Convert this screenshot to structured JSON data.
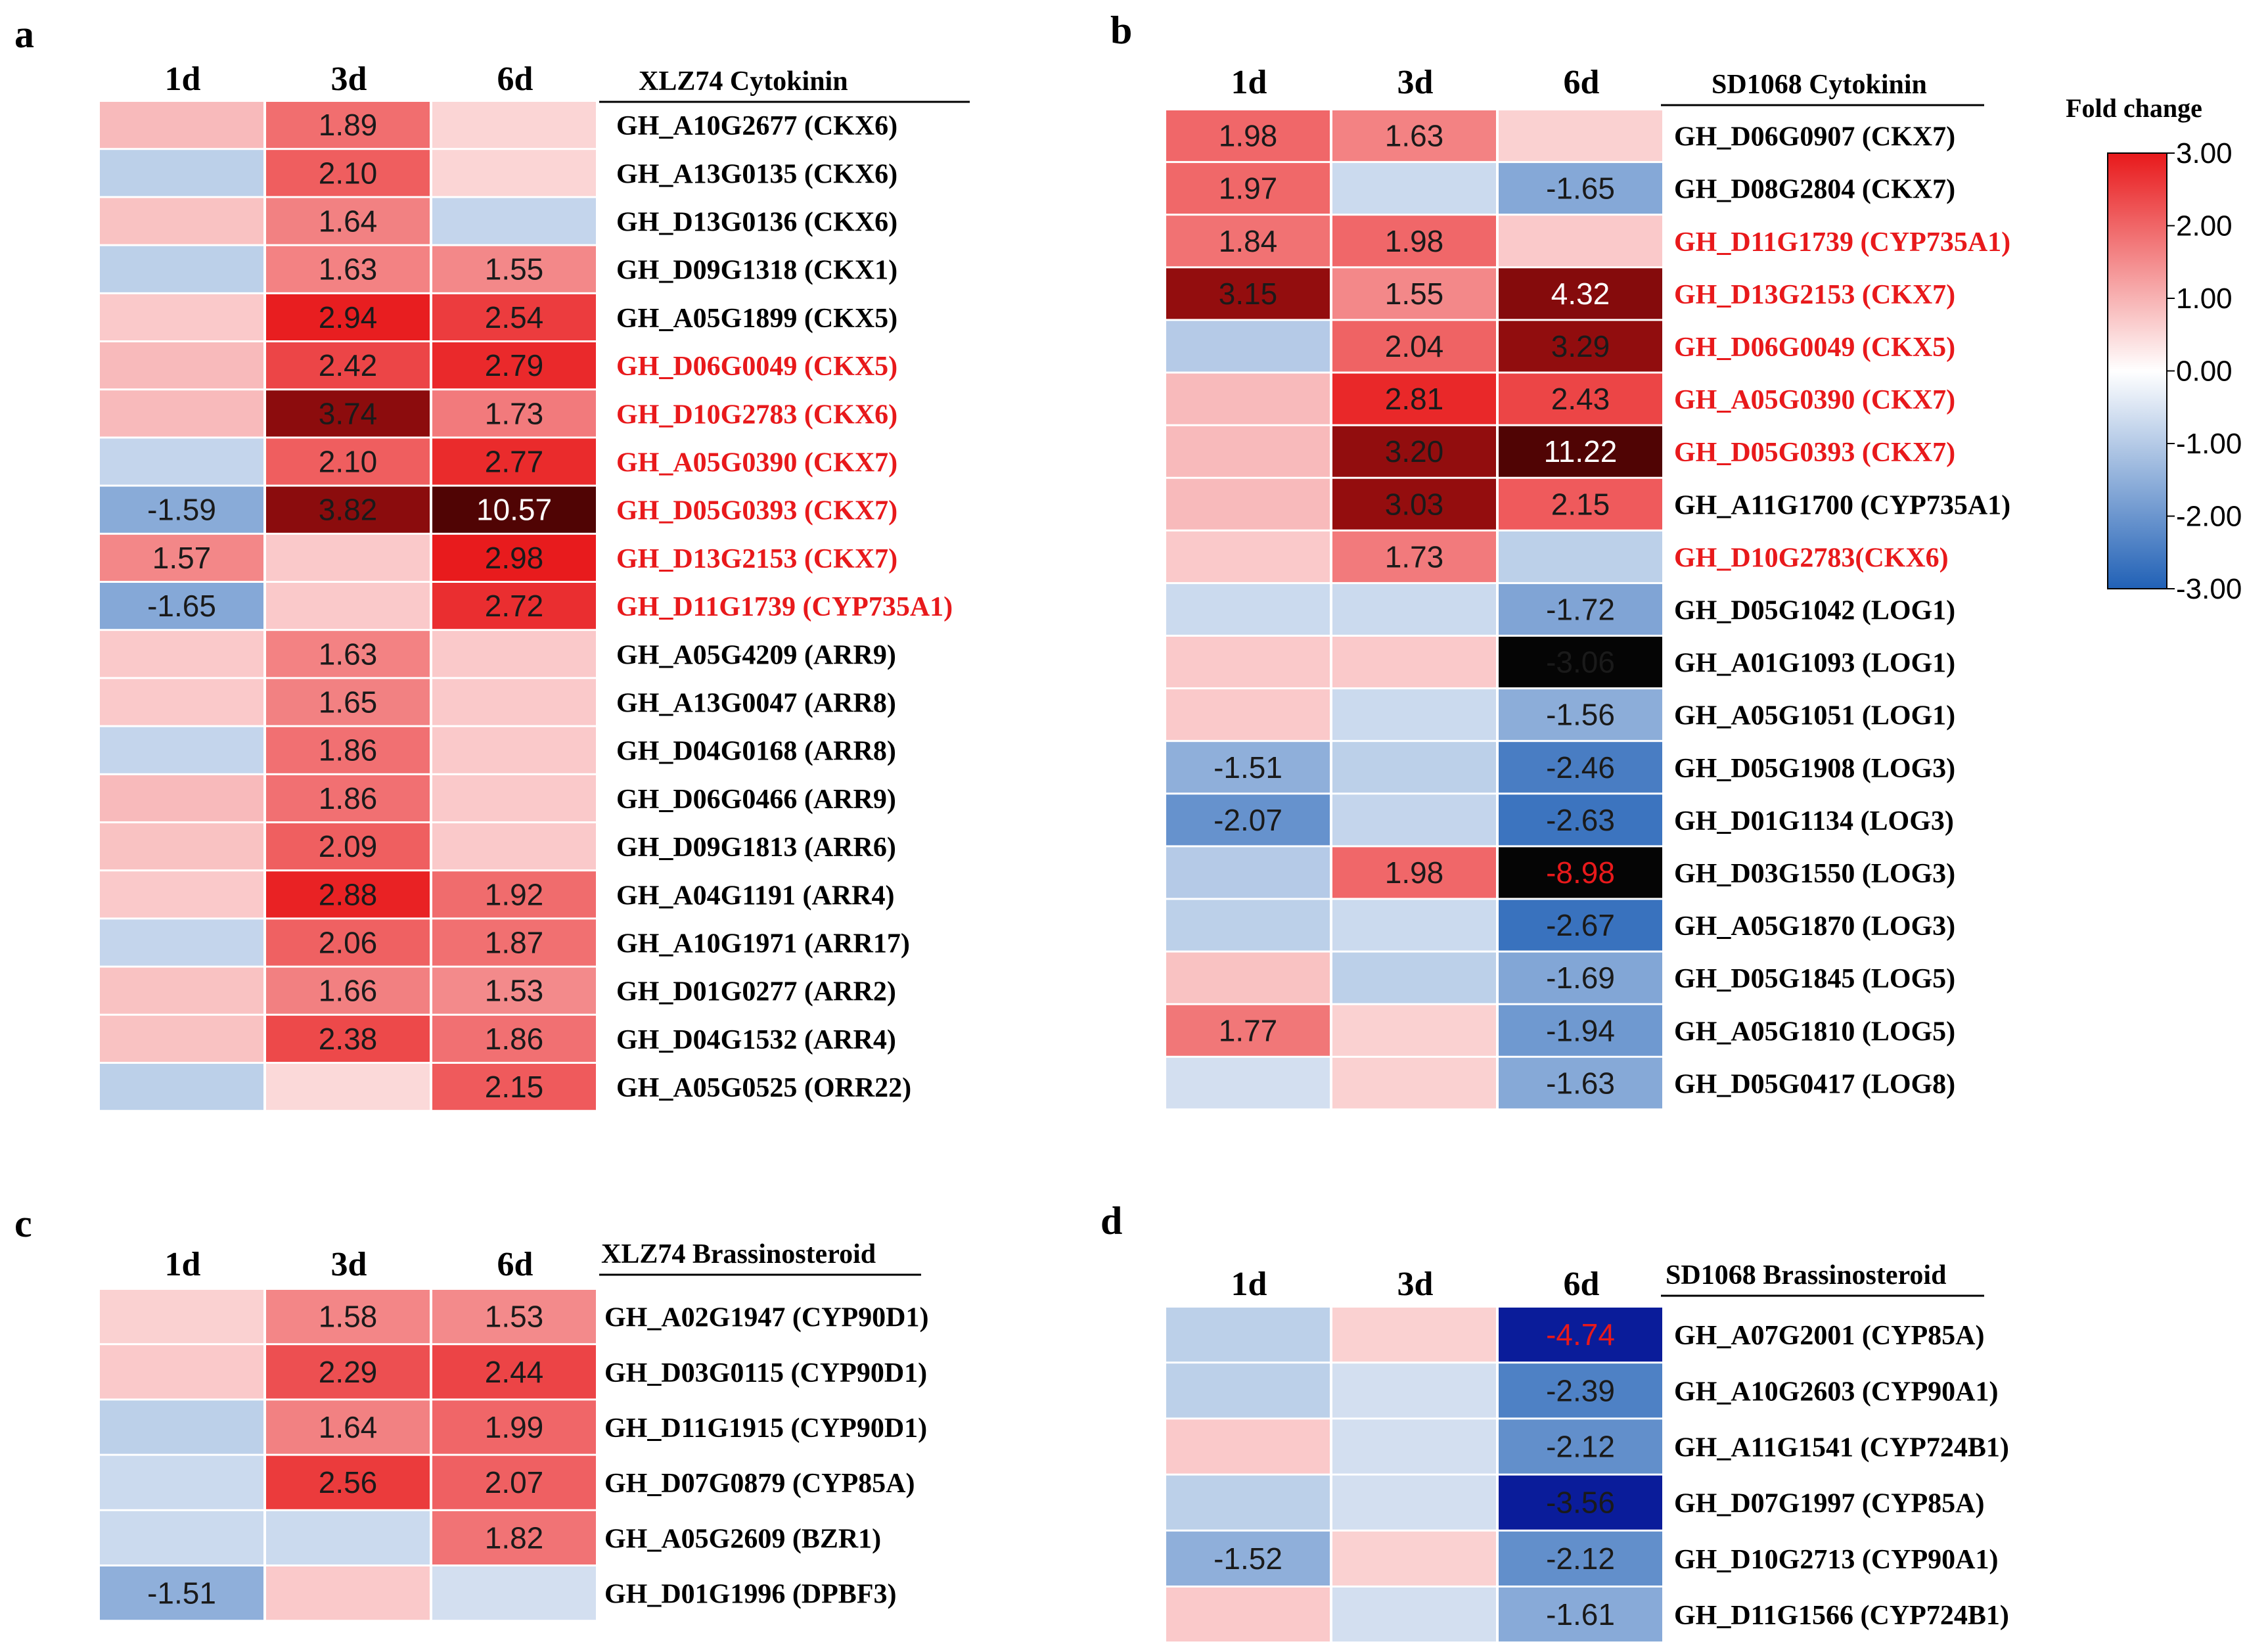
{
  "colors": {
    "low": "#2161b6",
    "mid": "#ffffff",
    "high": "#e8191b",
    "extreme_high": "#500404",
    "extreme_low_black": "#050505",
    "extreme_low_navy": "#0a1c9a",
    "highlight_label": "#e8191b",
    "normal_label": "#000000",
    "light_value": "#ffffff",
    "dark_value": "#1a1a1a"
  },
  "chart_data": [
    {
      "type": "heatmap",
      "panel": "a",
      "title": "XLZ74 Cytokinin",
      "columns": [
        "1d",
        "3d",
        "6d"
      ],
      "rows": [
        {
          "gene": "GH_A10G2677 (CKX6)",
          "highlight": false,
          "values": [
            0.9,
            1.89,
            0.55
          ],
          "labels": [
            "",
            "1.89",
            ""
          ]
        },
        {
          "gene": "GH_A13G0135 (CKX6)",
          "highlight": false,
          "values": [
            -0.9,
            2.1,
            0.55
          ],
          "labels": [
            "",
            "2.10",
            ""
          ]
        },
        {
          "gene": "GH_D13G0136 (CKX6)",
          "highlight": false,
          "values": [
            0.8,
            1.64,
            -0.8
          ],
          "labels": [
            "",
            "1.64",
            ""
          ]
        },
        {
          "gene": "GH_D09G1318 (CKX1)",
          "highlight": false,
          "values": [
            -0.9,
            1.63,
            1.55
          ],
          "labels": [
            "",
            "1.63",
            "1.55"
          ]
        },
        {
          "gene": "GH_A05G1899 (CKX5)",
          "highlight": false,
          "values": [
            0.7,
            2.94,
            2.54
          ],
          "labels": [
            "",
            "2.94",
            "2.54"
          ]
        },
        {
          "gene": "GH_D06G0049 (CKX5)",
          "highlight": true,
          "values": [
            0.9,
            2.42,
            2.79
          ],
          "labels": [
            "",
            "2.42",
            "2.79"
          ]
        },
        {
          "gene": "GH_D10G2783 (CKX6)",
          "highlight": true,
          "values": [
            0.9,
            3.74,
            1.73
          ],
          "labels": [
            "",
            "3.74",
            "1.73"
          ]
        },
        {
          "gene": "GH_A05G0390 (CKX7)",
          "highlight": true,
          "values": [
            -0.8,
            2.1,
            2.77
          ],
          "labels": [
            "",
            "2.10",
            "2.77"
          ]
        },
        {
          "gene": "GH_D05G0393 (CKX7)",
          "highlight": true,
          "values": [
            -1.59,
            3.82,
            10.57
          ],
          "labels": [
            "-1.59",
            "3.82",
            "10.57"
          ]
        },
        {
          "gene": "GH_D13G2153 (CKX7)",
          "highlight": true,
          "values": [
            1.57,
            0.7,
            2.98
          ],
          "labels": [
            "1.57",
            "",
            "2.98"
          ]
        },
        {
          "gene": "GH_D11G1739 (CYP735A1)",
          "highlight": true,
          "values": [
            -1.65,
            0.7,
            2.72
          ],
          "labels": [
            "-1.65",
            "",
            "2.72"
          ]
        },
        {
          "gene": "GH_A05G4209 (ARR9)",
          "highlight": false,
          "values": [
            0.7,
            1.63,
            0.7
          ],
          "labels": [
            "",
            "1.63",
            ""
          ]
        },
        {
          "gene": "GH_A13G0047 (ARR8)",
          "highlight": false,
          "values": [
            0.7,
            1.65,
            0.7
          ],
          "labels": [
            "",
            "1.65",
            ""
          ]
        },
        {
          "gene": "GH_D04G0168 (ARR8)",
          "highlight": false,
          "values": [
            -0.8,
            1.86,
            0.7
          ],
          "labels": [
            "",
            "1.86",
            ""
          ]
        },
        {
          "gene": "GH_D06G0466 (ARR9)",
          "highlight": false,
          "values": [
            0.9,
            1.86,
            0.7
          ],
          "labels": [
            "",
            "1.86",
            ""
          ]
        },
        {
          "gene": "GH_D09G1813 (ARR6)",
          "highlight": false,
          "values": [
            0.8,
            2.09,
            0.7
          ],
          "labels": [
            "",
            "2.09",
            ""
          ]
        },
        {
          "gene": "GH_A04G1191 (ARR4)",
          "highlight": false,
          "values": [
            0.7,
            2.88,
            1.92
          ],
          "labels": [
            "",
            "2.88",
            "1.92"
          ]
        },
        {
          "gene": "GH_A10G1971 (ARR17)",
          "highlight": false,
          "values": [
            -0.8,
            2.06,
            1.87
          ],
          "labels": [
            "",
            "2.06",
            "1.87"
          ]
        },
        {
          "gene": "GH_D01G0277 (ARR2)",
          "highlight": false,
          "values": [
            0.8,
            1.66,
            1.53
          ],
          "labels": [
            "",
            "1.66",
            "1.53"
          ]
        },
        {
          "gene": "GH_D04G1532 (ARR4)",
          "highlight": false,
          "values": [
            0.8,
            2.38,
            1.86
          ],
          "labels": [
            "",
            "2.38",
            "1.86"
          ]
        },
        {
          "gene": "GH_A05G0525 (ORR22)",
          "highlight": false,
          "values": [
            -0.9,
            0.5,
            2.15
          ],
          "labels": [
            "",
            "",
            "2.15"
          ]
        }
      ]
    },
    {
      "type": "heatmap",
      "panel": "b",
      "title": "SD1068 Cytokinin",
      "columns": [
        "1d",
        "3d",
        "6d"
      ],
      "rows": [
        {
          "gene": "GH_D06G0907 (CKX7)",
          "highlight": false,
          "values": [
            1.98,
            1.63,
            0.6
          ],
          "labels": [
            "1.98",
            "1.63",
            ""
          ]
        },
        {
          "gene": "GH_D08G2804 (CKX7)",
          "highlight": false,
          "values": [
            1.97,
            -0.7,
            -1.65
          ],
          "labels": [
            "1.97",
            "",
            "-1.65"
          ]
        },
        {
          "gene": "GH_D11G1739 (CYP735A1)",
          "highlight": true,
          "values": [
            1.84,
            1.98,
            0.7
          ],
          "labels": [
            "1.84",
            "1.98",
            ""
          ]
        },
        {
          "gene": "GH_D13G2153 (CKX7)",
          "highlight": true,
          "values": [
            3.15,
            1.55,
            4.32
          ],
          "labels": [
            "3.15",
            "1.55",
            "4.32"
          ]
        },
        {
          "gene": "GH_D06G0049 (CKX5)",
          "highlight": true,
          "values": [
            -1.0,
            2.04,
            3.29
          ],
          "labels": [
            "",
            "2.04",
            "3.29"
          ]
        },
        {
          "gene": "GH_A05G0390 (CKX7)",
          "highlight": true,
          "values": [
            0.9,
            2.81,
            2.43
          ],
          "labels": [
            "",
            "2.81",
            "2.43"
          ]
        },
        {
          "gene": "GH_D05G0393 (CKX7)",
          "highlight": true,
          "values": [
            0.9,
            3.2,
            11.22
          ],
          "labels": [
            "",
            "3.20",
            "11.22"
          ]
        },
        {
          "gene": "GH_A11G1700 (CYP735A1)",
          "highlight": false,
          "values": [
            0.9,
            3.03,
            2.15
          ],
          "labels": [
            "",
            "3.03",
            "2.15"
          ]
        },
        {
          "gene": "GH_D10G2783(CKX6)",
          "highlight": true,
          "values": [
            0.7,
            1.73,
            -0.9
          ],
          "labels": [
            "",
            "1.73",
            ""
          ]
        },
        {
          "gene": "GH_D05G1042 (LOG1)",
          "highlight": false,
          "values": [
            -0.7,
            -0.7,
            -1.72
          ],
          "labels": [
            "",
            "",
            "-1.72"
          ]
        },
        {
          "gene": "GH_A01G1093 (LOG1)",
          "highlight": false,
          "values": [
            0.7,
            0.7,
            -3.06
          ],
          "labels": [
            "",
            "",
            "-3.06"
          ]
        },
        {
          "gene": "GH_A05G1051 (LOG1)",
          "highlight": false,
          "values": [
            0.7,
            -0.7,
            -1.56
          ],
          "labels": [
            "",
            "",
            "-1.56"
          ]
        },
        {
          "gene": "GH_D05G1908 (LOG3)",
          "highlight": false,
          "values": [
            -1.51,
            -0.9,
            -2.46
          ],
          "labels": [
            "-1.51",
            "",
            "-2.46"
          ]
        },
        {
          "gene": "GH_D01G1134 (LOG3)",
          "highlight": false,
          "values": [
            -2.07,
            -0.8,
            -2.63
          ],
          "labels": [
            "-2.07",
            "",
            "-2.63"
          ]
        },
        {
          "gene": "GH_D03G1550 (LOG3)",
          "highlight": false,
          "values": [
            -1.0,
            1.98,
            -8.98
          ],
          "labels": [
            "",
            "1.98",
            "-8.98"
          ]
        },
        {
          "gene": "GH_A05G1870 (LOG3)",
          "highlight": false,
          "values": [
            -0.9,
            -0.7,
            -2.67
          ],
          "labels": [
            "",
            "",
            "-2.67"
          ]
        },
        {
          "gene": "GH_D05G1845 (LOG5)",
          "highlight": false,
          "values": [
            0.8,
            -0.9,
            -1.69
          ],
          "labels": [
            "",
            "",
            "-1.69"
          ]
        },
        {
          "gene": "GH_A05G1810 (LOG5)",
          "highlight": false,
          "values": [
            1.77,
            0.6,
            -1.94
          ],
          "labels": [
            "1.77",
            "",
            "-1.94"
          ]
        },
        {
          "gene": "GH_D05G0417 (LOG8)",
          "highlight": false,
          "values": [
            -0.6,
            0.6,
            -1.63
          ],
          "labels": [
            "",
            "",
            "-1.63"
          ]
        }
      ]
    },
    {
      "type": "heatmap",
      "panel": "c",
      "title": "XLZ74 Brassinosteroid",
      "columns": [
        "1d",
        "3d",
        "6d"
      ],
      "rows": [
        {
          "gene": "GH_A02G1947 (CYP90D1)",
          "highlight": false,
          "values": [
            0.6,
            1.58,
            1.53
          ],
          "labels": [
            "",
            "1.58",
            "1.53"
          ]
        },
        {
          "gene": "GH_D03G0115 (CYP90D1)",
          "highlight": false,
          "values": [
            0.7,
            2.29,
            2.44
          ],
          "labels": [
            "",
            "2.29",
            "2.44"
          ]
        },
        {
          "gene": "GH_D11G1915 (CYP90D1)",
          "highlight": false,
          "values": [
            -0.9,
            1.64,
            1.99
          ],
          "labels": [
            "",
            "1.64",
            "1.99"
          ]
        },
        {
          "gene": "GH_D07G0879 (CYP85A)",
          "highlight": false,
          "values": [
            -0.7,
            2.56,
            2.07
          ],
          "labels": [
            "",
            "2.56",
            "2.07"
          ]
        },
        {
          "gene": "GH_A05G2609 (BZR1)",
          "highlight": false,
          "values": [
            -0.7,
            -0.7,
            1.82
          ],
          "labels": [
            "",
            "",
            "1.82"
          ]
        },
        {
          "gene": "GH_D01G1996 (DPBF3)",
          "highlight": false,
          "values": [
            -1.51,
            0.7,
            -0.6
          ],
          "labels": [
            "-1.51",
            "",
            ""
          ]
        }
      ]
    },
    {
      "type": "heatmap",
      "panel": "d",
      "title": "SD1068 Brassinosteroid",
      "columns": [
        "1d",
        "3d",
        "6d"
      ],
      "rows": [
        {
          "gene": "GH_A07G2001 (CYP85A)",
          "highlight": false,
          "values": [
            -0.9,
            0.6,
            -4.74
          ],
          "labels": [
            "",
            "",
            "-4.74"
          ]
        },
        {
          "gene": "GH_A10G2603 (CYP90A1)",
          "highlight": false,
          "values": [
            -0.9,
            -0.6,
            -2.39
          ],
          "labels": [
            "",
            "",
            "-2.39"
          ]
        },
        {
          "gene": "GH_A11G1541 (CYP724B1)",
          "highlight": false,
          "values": [
            0.7,
            -0.6,
            -2.12
          ],
          "labels": [
            "",
            "",
            "-2.12"
          ]
        },
        {
          "gene": "GH_D07G1997 (CYP85A)",
          "highlight": false,
          "values": [
            -0.9,
            -0.6,
            -3.56
          ],
          "labels": [
            "",
            "",
            "-3.56"
          ]
        },
        {
          "gene": "GH_D10G2713 (CYP90A1)",
          "highlight": false,
          "values": [
            -1.52,
            0.6,
            -2.12
          ],
          "labels": [
            "-1.52",
            "",
            "-2.12"
          ]
        },
        {
          "gene": "GH_D11G1566 (CYP724B1)",
          "highlight": false,
          "values": [
            0.7,
            -0.6,
            -1.61
          ],
          "labels": [
            "",
            "",
            "-1.61"
          ]
        }
      ]
    }
  ],
  "legend": {
    "title": "Fold change",
    "range": [
      -3.0,
      3.0
    ],
    "ticks": [
      "3.00",
      "2.00",
      "1.00",
      "0.00",
      "-1.00",
      "-2.00",
      "-3.00"
    ]
  }
}
